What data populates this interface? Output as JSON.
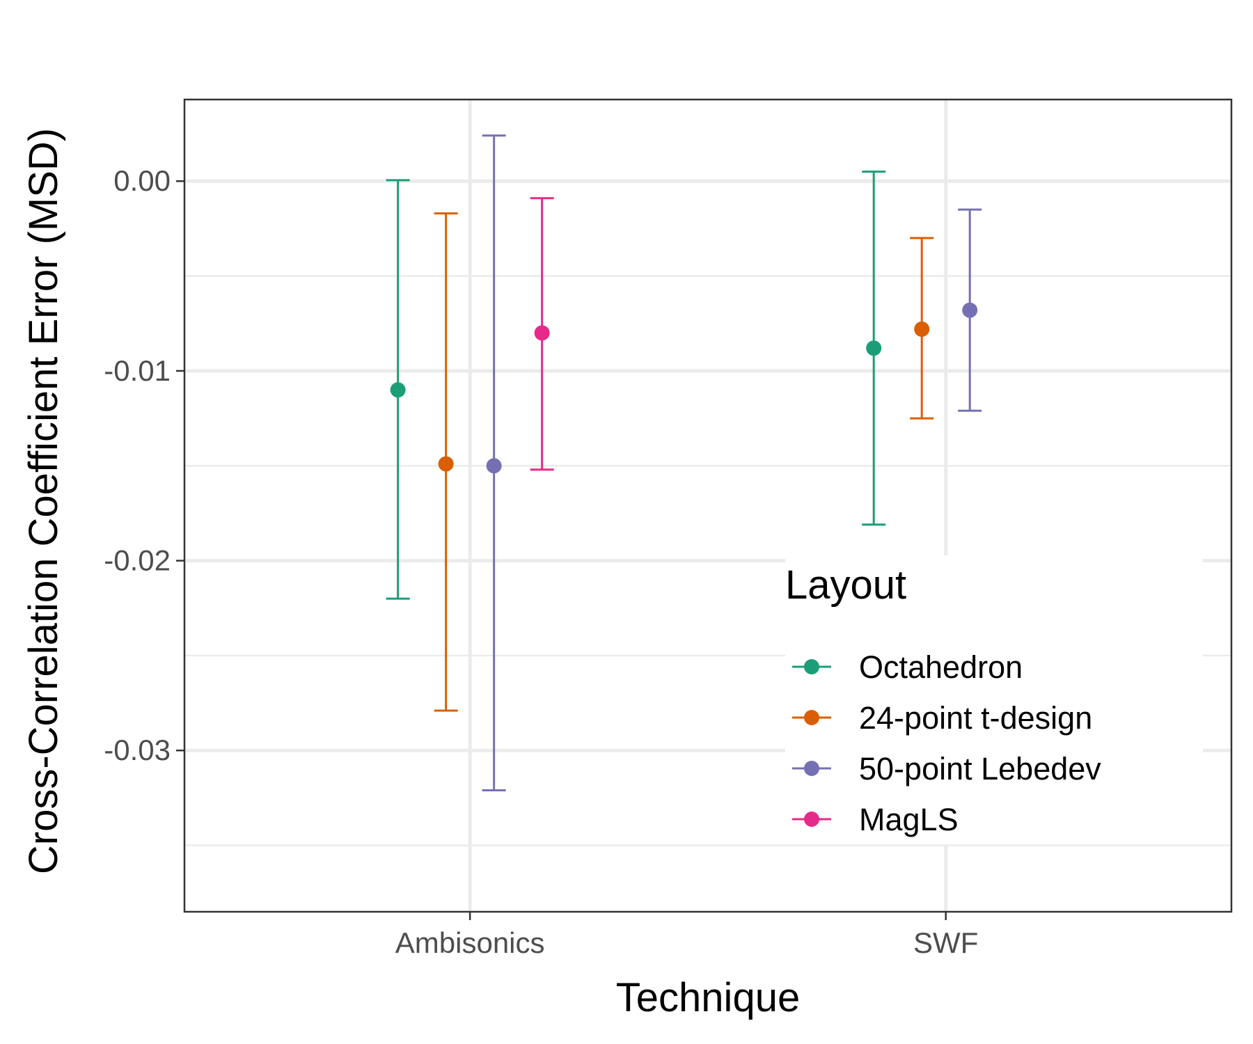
{
  "chart_data": {
    "type": "errorbar",
    "title": "",
    "xlabel": "Technique",
    "ylabel": "Cross-Correlation Coefficient Error (MSD)",
    "categories": [
      "Ambisonics",
      "SWF"
    ],
    "ylim": [
      -0.0385,
      0.0043
    ],
    "yticks": [
      0.0,
      -0.01,
      -0.02,
      -0.03
    ],
    "ytick_labels": [
      "0.00",
      "-0.01",
      "-0.02",
      "-0.03"
    ],
    "legend": {
      "title": "Layout",
      "position": "inside-bottom-right"
    },
    "series": [
      {
        "name": "Octahedron",
        "color": "#1b9e77",
        "points": [
          {
            "category": "Ambisonics",
            "mean": -0.011,
            "lower": -0.022,
            "upper": 5e-05
          },
          {
            "category": "SWF",
            "mean": -0.0088,
            "lower": -0.0181,
            "upper": 0.0005
          }
        ]
      },
      {
        "name": "24-point t-design",
        "color": "#d95f02",
        "points": [
          {
            "category": "Ambisonics",
            "mean": -0.0149,
            "lower": -0.0279,
            "upper": -0.0017
          },
          {
            "category": "SWF",
            "mean": -0.0078,
            "lower": -0.0125,
            "upper": -0.003
          }
        ]
      },
      {
        "name": "50-point Lebedev",
        "color": "#7570b3",
        "points": [
          {
            "category": "Ambisonics",
            "mean": -0.015,
            "lower": -0.0321,
            "upper": 0.0024
          },
          {
            "category": "SWF",
            "mean": -0.0068,
            "lower": -0.0121,
            "upper": -0.0015
          }
        ]
      },
      {
        "name": "MagLS",
        "color": "#e7298a",
        "points": [
          {
            "category": "Ambisonics",
            "mean": -0.008,
            "lower": -0.0152,
            "upper": -0.0009
          }
        ]
      }
    ]
  }
}
